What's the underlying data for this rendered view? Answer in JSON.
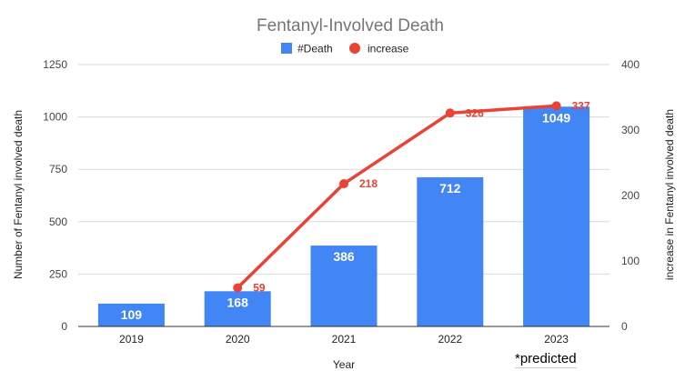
{
  "chart_data": {
    "type": "bar",
    "title": "Fentanyl-Involved Death",
    "xlabel": "Year",
    "ylabel": "Number of Fentanyl involved death",
    "y2label": "increase in Fentanyl involved death",
    "categories": [
      "2019",
      "2020",
      "2021",
      "2022",
      "2023"
    ],
    "ylim": [
      0,
      1250
    ],
    "y_ticks": [
      0,
      250,
      500,
      750,
      1000,
      1250
    ],
    "y2lim": [
      0,
      400
    ],
    "y2_ticks": [
      0,
      100,
      200,
      300,
      400
    ],
    "grid": true,
    "legend_position": "top",
    "series": [
      {
        "name": "#Death",
        "type": "bar",
        "axis": "left",
        "color": "#4285f4",
        "values": [
          109,
          168,
          386,
          712,
          1049
        ],
        "labels": [
          "109",
          "168",
          "386",
          "712",
          "1049"
        ]
      },
      {
        "name": "increase",
        "type": "line",
        "axis": "right",
        "color": "#ea4335",
        "values": [
          null,
          59,
          218,
          326,
          337
        ],
        "labels": [
          "",
          "59",
          "218",
          "326",
          "337"
        ]
      }
    ],
    "annotation": "*predicted"
  }
}
